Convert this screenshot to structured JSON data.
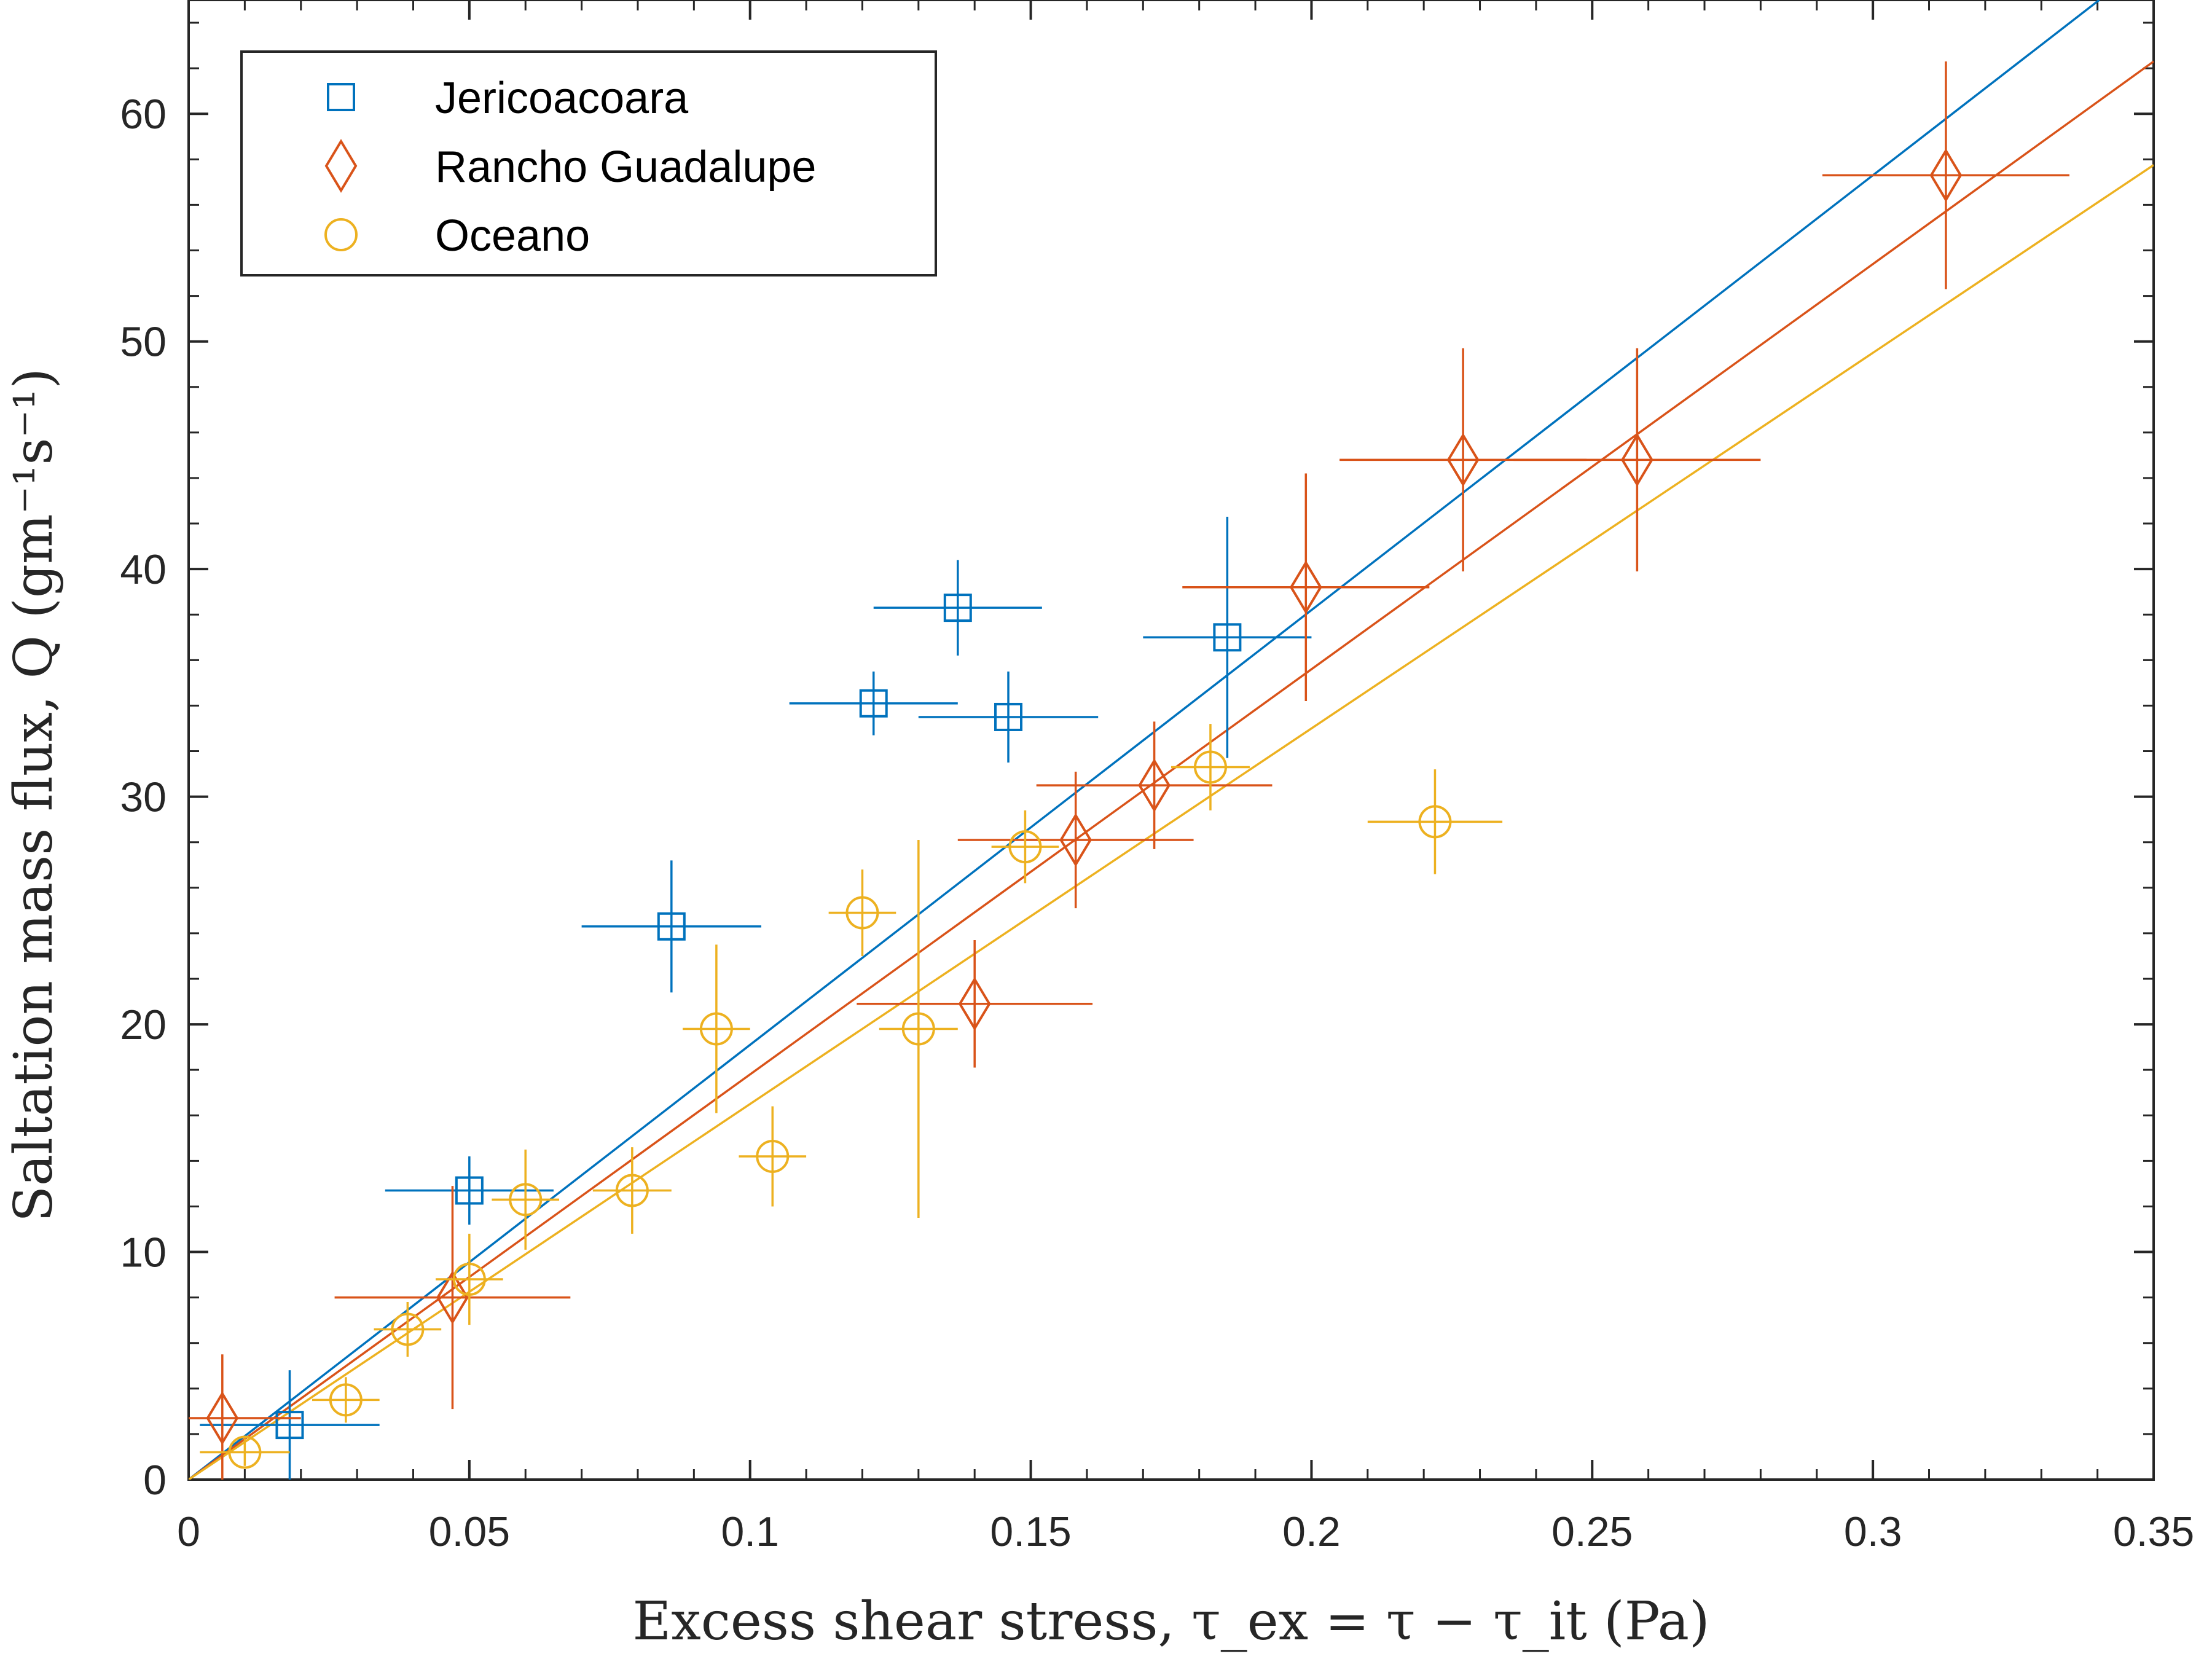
{
  "chart_data": {
    "type": "scatter",
    "title": "",
    "xlabel": "Excess shear stress, τ_ex = τ − τ_it (Pa)",
    "ylabel": "Saltation mass flux, Q (gm⁻¹s⁻¹)",
    "xlim": [
      0,
      0.35
    ],
    "ylim": [
      0,
      65
    ],
    "x_ticks": [
      "0",
      "0.05",
      "0.1",
      "0.15",
      "0.2",
      "0.25",
      "0.3",
      "0.35"
    ],
    "y_ticks": [
      "0",
      "10",
      "20",
      "30",
      "40",
      "50",
      "60"
    ],
    "grid": false,
    "legend_position": "top-left",
    "series": [
      {
        "name": "Jericoacoara",
        "marker": "square",
        "color": "#0072BD",
        "fit_slope": 191,
        "points": [
          {
            "x": 0.018,
            "y": 2.4,
            "xerr": 0.016,
            "yerr": 2.4
          },
          {
            "x": 0.05,
            "y": 12.7,
            "xerr": 0.015,
            "yerr": 1.5
          },
          {
            "x": 0.086,
            "y": 24.3,
            "xerr": 0.016,
            "yerr": 2.9
          },
          {
            "x": 0.122,
            "y": 34.1,
            "xerr": 0.015,
            "yerr": 1.4
          },
          {
            "x": 0.137,
            "y": 38.3,
            "xerr": 0.015,
            "yerr": 2.1
          },
          {
            "x": 0.146,
            "y": 33.5,
            "xerr": 0.016,
            "yerr": 2.0
          },
          {
            "x": 0.185,
            "y": 37.0,
            "xerr": 0.015,
            "yerr": 5.3
          }
        ]
      },
      {
        "name": "Rancho Guadalupe",
        "marker": "diamond",
        "color": "#D95319",
        "fit_slope": 178,
        "points": [
          {
            "x": 0.006,
            "y": 2.7,
            "xerr": 0.014,
            "yerr": 2.8
          },
          {
            "x": 0.047,
            "y": 8.0,
            "xerr": 0.021,
            "yerr": 4.9
          },
          {
            "x": 0.14,
            "y": 20.9,
            "xerr": 0.021,
            "yerr": 2.8
          },
          {
            "x": 0.158,
            "y": 28.1,
            "xerr": 0.021,
            "yerr": 3.0
          },
          {
            "x": 0.172,
            "y": 30.5,
            "xerr": 0.021,
            "yerr": 2.8
          },
          {
            "x": 0.199,
            "y": 39.2,
            "xerr": 0.022,
            "yerr": 5.0
          },
          {
            "x": 0.227,
            "y": 44.8,
            "xerr": 0.022,
            "yerr": 4.9
          },
          {
            "x": 0.258,
            "y": 44.8,
            "xerr": 0.022,
            "yerr": 4.9
          },
          {
            "x": 0.313,
            "y": 57.3,
            "xerr": 0.022,
            "yerr": 5.0
          }
        ]
      },
      {
        "name": "Oceano",
        "marker": "circle",
        "color": "#EDB120",
        "fit_slope": 165,
        "points": [
          {
            "x": 0.01,
            "y": 1.2,
            "xerr": 0.008,
            "yerr": 0.6
          },
          {
            "x": 0.028,
            "y": 3.5,
            "xerr": 0.006,
            "yerr": 1.0
          },
          {
            "x": 0.039,
            "y": 6.6,
            "xerr": 0.006,
            "yerr": 1.2
          },
          {
            "x": 0.05,
            "y": 8.8,
            "xerr": 0.006,
            "yerr": 2.0
          },
          {
            "x": 0.06,
            "y": 12.3,
            "xerr": 0.006,
            "yerr": 2.2
          },
          {
            "x": 0.079,
            "y": 12.7,
            "xerr": 0.007,
            "yerr": 1.9
          },
          {
            "x": 0.094,
            "y": 19.8,
            "xerr": 0.006,
            "yerr": 3.7
          },
          {
            "x": 0.104,
            "y": 14.2,
            "xerr": 0.006,
            "yerr": 2.2
          },
          {
            "x": 0.12,
            "y": 24.9,
            "xerr": 0.006,
            "yerr": 1.9
          },
          {
            "x": 0.13,
            "y": 19.8,
            "xerr": 0.007,
            "yerr": 8.3
          },
          {
            "x": 0.149,
            "y": 27.8,
            "xerr": 0.006,
            "yerr": 1.6
          },
          {
            "x": 0.182,
            "y": 31.3,
            "xerr": 0.007,
            "yerr": 1.9
          },
          {
            "x": 0.222,
            "y": 28.9,
            "xerr": 0.012,
            "yerr": 2.3
          }
        ]
      }
    ]
  }
}
